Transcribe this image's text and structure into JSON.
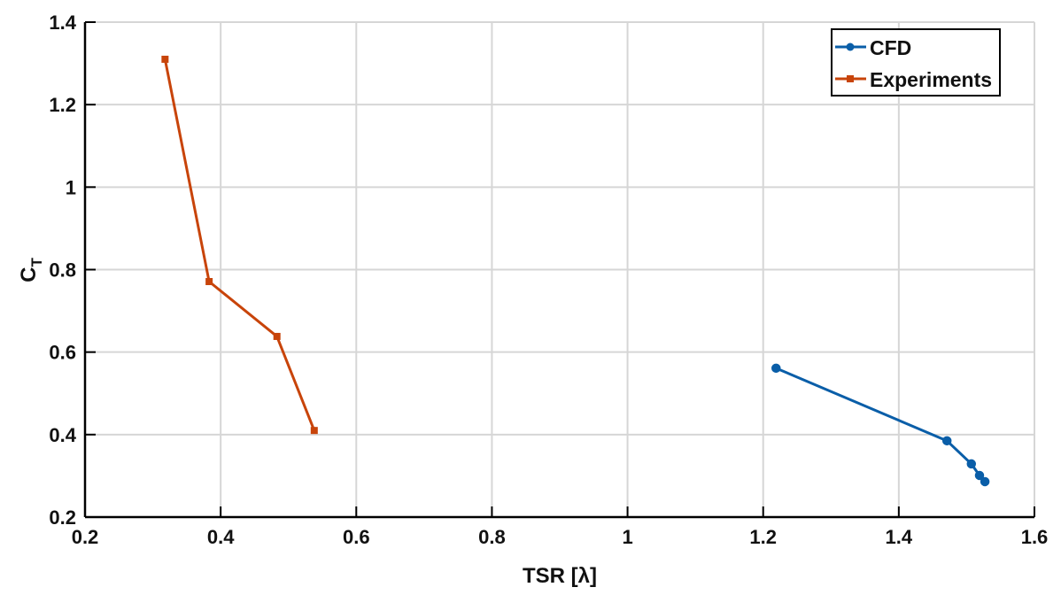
{
  "chart_data": {
    "type": "line",
    "title": "",
    "xlabel": "TSR [λ]",
    "ylabel": "C",
    "ylabel_subscript": "T",
    "xlim": [
      0.2,
      1.6
    ],
    "ylim": [
      0.2,
      1.4
    ],
    "xticks": [
      "0.2",
      "0.4",
      "0.6",
      "0.8",
      "1",
      "1.2",
      "1.4",
      "1.6"
    ],
    "yticks": [
      "0.2",
      "0.4",
      "0.6",
      "0.8",
      "1",
      "1.2",
      "1.4"
    ],
    "grid": true,
    "legend_position": "upper right",
    "series": [
      {
        "name": "CFD",
        "color": "#0a5ea8",
        "marker": "circle",
        "x": [
          1.219,
          1.471,
          1.507,
          1.519,
          1.527
        ],
        "y": [
          0.561,
          0.385,
          0.329,
          0.301,
          0.286
        ]
      },
      {
        "name": "Experiments",
        "color": "#c8440a",
        "marker": "square",
        "x": [
          0.318,
          0.383,
          0.483,
          0.538
        ],
        "y": [
          1.31,
          0.771,
          0.638,
          0.41
        ]
      }
    ]
  }
}
